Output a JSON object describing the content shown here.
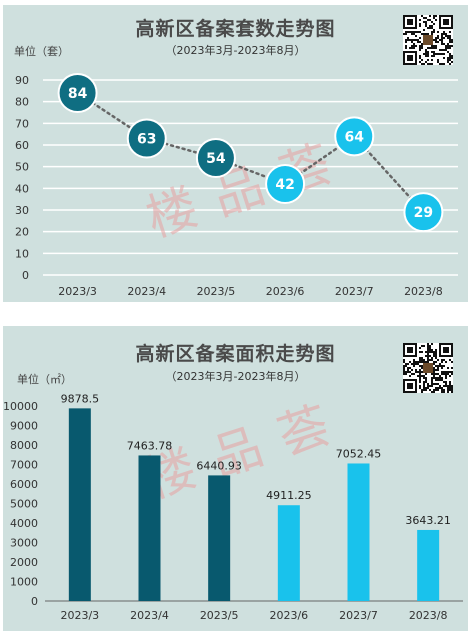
{
  "watermark": "楼品荟",
  "colors": {
    "panel_bg": "#cfe0de",
    "dark": "#0f6e82",
    "dark_bar": "#08596e",
    "light": "#19c2ec",
    "grid": "#ffffff",
    "dotted_line": "#666666",
    "watermark": "#e8a0a0"
  },
  "charts": [
    {
      "title": "高新区备案套数走势图",
      "subtitle": "（2023年3月-2023年8月）",
      "unit": "单位（套）",
      "qr_icon": "qr-code-icon"
    },
    {
      "title": "高新区备案面积走势图",
      "subtitle": "（2023年3月-2023年8月）",
      "unit": "单位（㎡）",
      "qr_icon": "qr-code-icon"
    }
  ],
  "chart_data": [
    {
      "type": "line",
      "title": "高新区备案套数走势图",
      "subtitle": "（2023年3月-2023年8月）",
      "ylabel": "单位（套）",
      "categories": [
        "2023/3",
        "2023/4",
        "2023/5",
        "2023/6",
        "2023/7",
        "2023/8"
      ],
      "values": [
        84,
        63,
        54,
        42,
        64,
        29
      ],
      "point_colors": [
        "dark",
        "dark",
        "dark",
        "light",
        "light",
        "light"
      ],
      "ylim": [
        0,
        90
      ],
      "yticks": [
        0,
        10,
        20,
        30,
        40,
        50,
        60,
        70,
        80,
        90
      ],
      "grid": true,
      "line_style": "dotted"
    },
    {
      "type": "bar",
      "title": "高新区备案面积走势图",
      "subtitle": "（2023年3月-2023年8月）",
      "ylabel": "单位（㎡）",
      "categories": [
        "2023/3",
        "2023/4",
        "2023/5",
        "2023/6",
        "2023/7",
        "2023/8"
      ],
      "values": [
        9878.5,
        7463.78,
        6440.93,
        4911.25,
        7052.45,
        3643.21
      ],
      "labels": [
        "9878.5",
        "7463.78",
        "6440.93",
        "4911.25",
        "7052.45",
        "3643.21"
      ],
      "bar_colors": [
        "dark",
        "dark",
        "dark",
        "light",
        "light",
        "light"
      ],
      "ylim": [
        0,
        10000
      ],
      "yticks": [
        0,
        1000,
        2000,
        3000,
        4000,
        5000,
        6000,
        7000,
        8000,
        9000,
        10000
      ],
      "grid": false
    }
  ]
}
